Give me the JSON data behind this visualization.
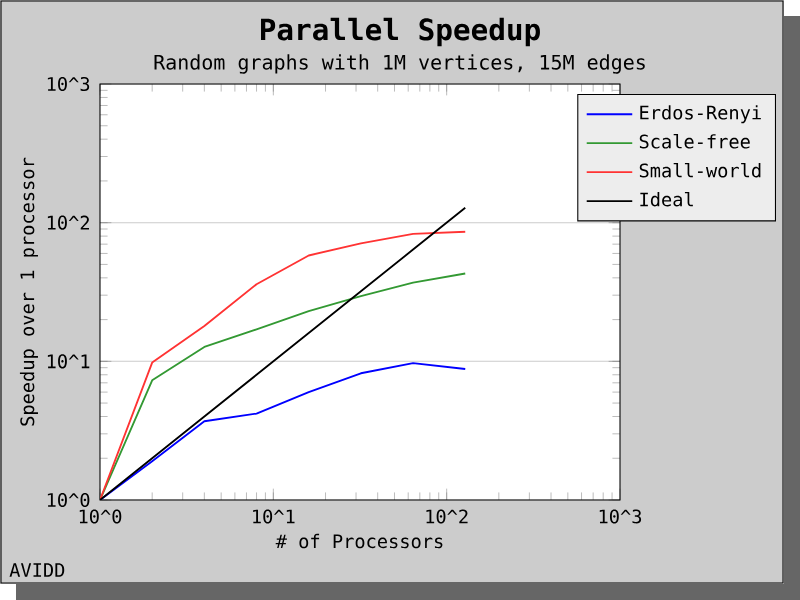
{
  "chart_data": {
    "type": "line",
    "title": "Parallel Speedup",
    "subtitle": "Random graphs with 1M vertices, 15M edges",
    "xlabel": "# of Processors",
    "ylabel": "Speedup over 1 processor",
    "x": [
      1,
      2,
      4,
      8,
      16,
      32,
      64,
      128
    ],
    "series": [
      {
        "name": "Erdos-Renyi",
        "color": "#0000ff",
        "values": [
          1,
          1.9,
          3.7,
          4.2,
          6.0,
          8.2,
          9.7,
          8.8
        ]
      },
      {
        "name": "Scale-free",
        "color": "#339933",
        "values": [
          1,
          7.3,
          12.7,
          17,
          23,
          29.5,
          37,
          43
        ]
      },
      {
        "name": "Small-world",
        "color": "#ff3333",
        "values": [
          1,
          9.8,
          18,
          36,
          58,
          71,
          83,
          86
        ]
      },
      {
        "name": "Ideal",
        "color": "#000000",
        "values": [
          1,
          2,
          4,
          8,
          16,
          32,
          64,
          128
        ]
      }
    ],
    "xlim": [
      1,
      1000
    ],
    "ylim": [
      1,
      1000
    ],
    "xticks": [
      {
        "value": 1,
        "label": "10^0"
      },
      {
        "value": 10,
        "label": "10^1"
      },
      {
        "value": 100,
        "label": "10^2"
      },
      {
        "value": 1000,
        "label": "10^3"
      }
    ],
    "yticks": [
      {
        "value": 1,
        "label": "10^0"
      },
      {
        "value": 10,
        "label": "10^1"
      },
      {
        "value": 100,
        "label": "10^2"
      },
      {
        "value": 1000,
        "label": "10^3"
      }
    ],
    "log": "xy",
    "grid": "y",
    "legend": "top right",
    "annotations": [
      "AVIDD"
    ]
  }
}
